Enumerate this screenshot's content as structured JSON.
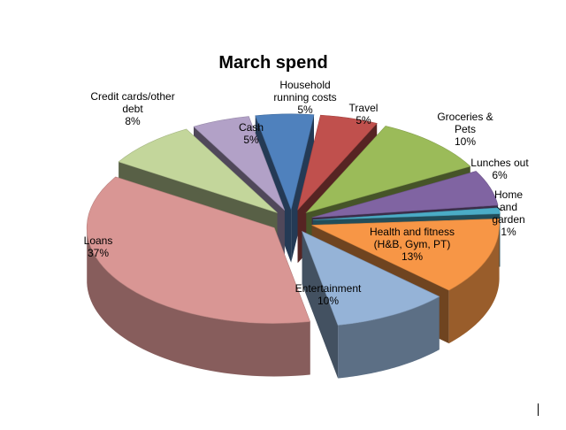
{
  "chart_data": {
    "type": "pie",
    "title": "March spend",
    "legend": "none",
    "slices": [
      {
        "label": "Household running costs",
        "lines": [
          "Household",
          "running costs",
          "5%"
        ],
        "value": 5,
        "color": "#4f81bd",
        "explode": 0.1
      },
      {
        "label": "Travel",
        "lines": [
          "Travel",
          "5%"
        ],
        "value": 5,
        "color": "#c0504d",
        "explode": 0.1
      },
      {
        "label": "Groceries & Pets",
        "lines": [
          "Groceries &",
          "Pets",
          "10%"
        ],
        "value": 10,
        "color": "#9bbb59",
        "explode": 0.1
      },
      {
        "label": "Lunches out",
        "lines": [
          "Lunches out",
          "6%"
        ],
        "value": 6,
        "color": "#8064a2",
        "explode": 0.1
      },
      {
        "label": "Home and garden",
        "lines": [
          "Home",
          "and",
          "garden",
          "1%"
        ],
        "value": 1,
        "color": "#4bacc6",
        "explode": 0.1
      },
      {
        "label": "Health and fitness (H&B, Gym, PT)",
        "lines": [
          "Health and fitness",
          "(H&B, Gym, PT)",
          "13%"
        ],
        "value": 13,
        "color": "#f79646",
        "explode": 0.1
      },
      {
        "label": "Entertainment",
        "lines": [
          "Entertainment",
          "10%"
        ],
        "value": 10,
        "color": "#95b3d7",
        "explode": 0.1
      },
      {
        "label": "Loans",
        "lines": [
          "Loans",
          "37%"
        ],
        "value": 37,
        "color": "#d99694",
        "explode": 0.1
      },
      {
        "label": "Credit cards/other debt",
        "lines": [
          "Credit cards/other",
          "debt",
          "8%"
        ],
        "value": 8,
        "color": "#c3d69b",
        "explode": 0.1
      },
      {
        "label": "Cash",
        "lines": [
          "Cash",
          "5%"
        ],
        "value": 5,
        "color": "#b2a1c7",
        "explode": 0.1
      }
    ]
  }
}
